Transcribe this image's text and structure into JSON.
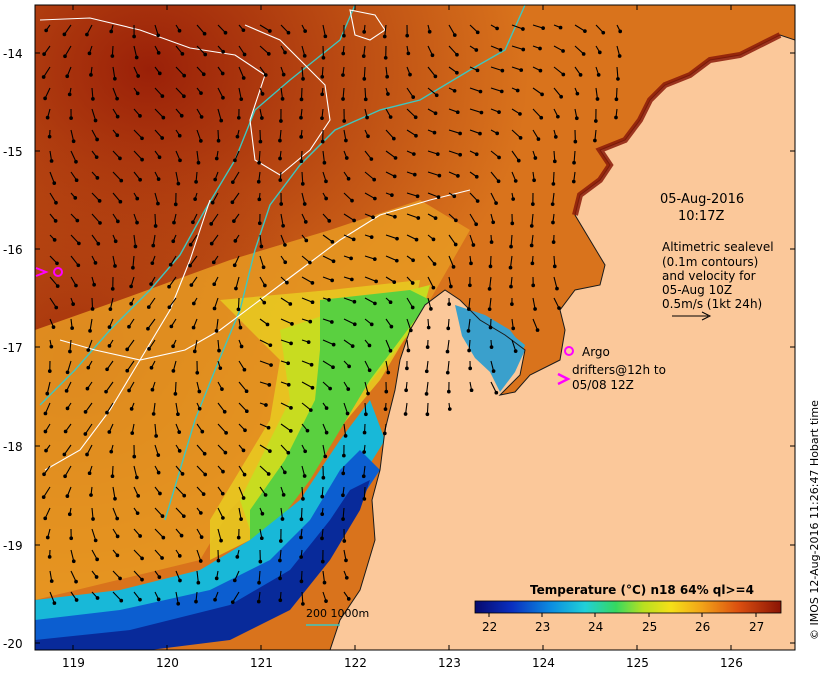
{
  "map": {
    "date": "05-Aug-2016",
    "time": "10:17Z",
    "altimetry_caption": [
      "Altimetric sealevel",
      "(0.1m contours)",
      "and velocity for",
      "05-Aug 10Z",
      "0.5m/s (1kt 24h)"
    ],
    "legend_argo": "Argo",
    "legend_drifters": [
      "drifters@12h to",
      "05/08 12Z"
    ],
    "bathymetry_label": "200  1000m",
    "colorbar_title": "Temperature (°C) n18 64% ql>=4",
    "colorbar_ticks": [
      "22",
      "23",
      "24",
      "25",
      "26",
      "27"
    ],
    "lat_labels": [
      "-14",
      "-15",
      "-16",
      "-17",
      "-18",
      "-19",
      "-20"
    ],
    "lon_labels": [
      "119",
      "120",
      "121",
      "122",
      "123",
      "124",
      "125",
      "126"
    ],
    "credit": "© IMOS 12-Aug-2016 11:26:47 Hobart time",
    "colors": {
      "land": "#fbc89a",
      "sst_warm": "#b5350c",
      "sst_cool": "#2b57c8",
      "argo_marker": "#ff00ff",
      "drifter_marker": "#ff00ff",
      "bathymetry_line": "#3ec7c0",
      "sealevel_contour": "#ffffff"
    }
  }
}
